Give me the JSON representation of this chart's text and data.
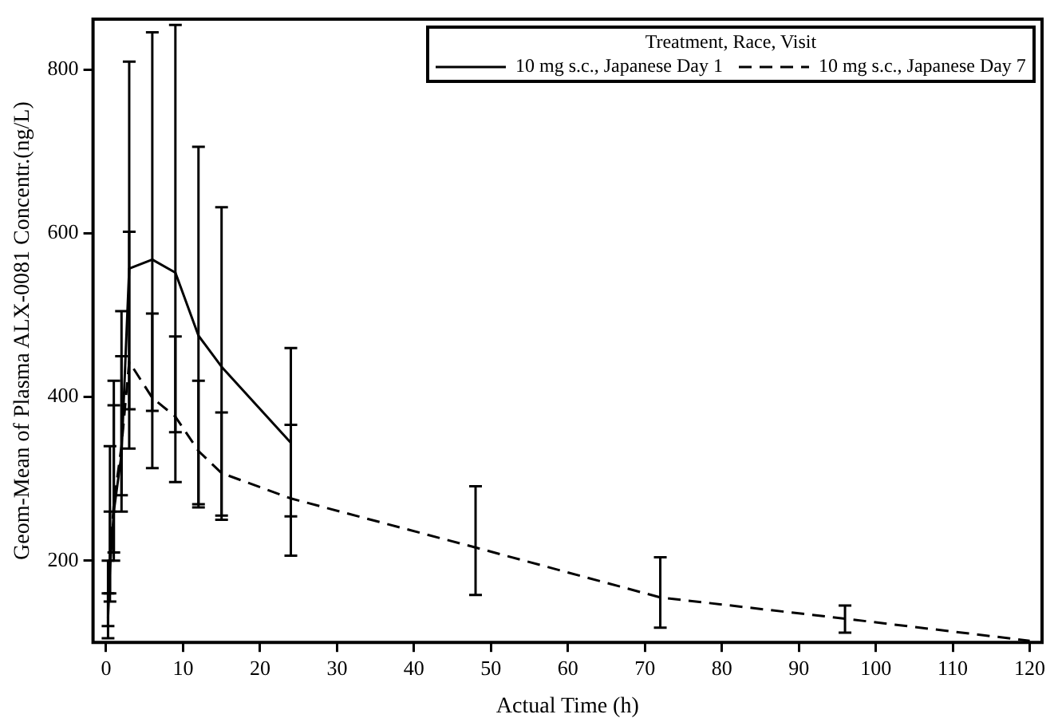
{
  "chart_data": {
    "type": "line",
    "xlabel": "Actual Time (h)",
    "ylabel": "Geom-Mean of Plasma ALX-0081 Concentr.(ng/L)",
    "legend_title": "Treatment, Race, Visit",
    "series": [
      {
        "name": "10 mg s.c., Japanese Day 1",
        "color": "#000000",
        "line_style": "solid",
        "x": [
          0.25,
          0.5,
          1,
          2,
          3,
          6,
          9,
          12,
          15,
          24
        ],
        "values": [
          130,
          190,
          260,
          330,
          557,
          568,
          552,
          475,
          437,
          344
        ],
        "errors": [
          [
            105,
            160
          ],
          [
            150,
            260
          ],
          [
            200,
            390
          ],
          [
            260,
            505
          ],
          [
            337,
            810
          ],
          [
            313,
            846
          ],
          [
            296,
            855
          ],
          [
            269,
            706
          ],
          [
            250,
            632
          ],
          [
            254,
            460
          ]
        ]
      },
      {
        "name": "10 mg s.c., Japanese Day 7",
        "color": "#000000",
        "line_style": "dashed",
        "x": [
          0.25,
          0.5,
          1,
          2,
          3,
          6,
          9,
          12,
          15,
          24,
          48,
          72,
          96,
          120
        ],
        "values": [
          150,
          200,
          270,
          340,
          443,
          399,
          376,
          334,
          307,
          276,
          216,
          155,
          129,
          102
        ],
        "errors": [
          [
            120,
            200
          ],
          [
            160,
            340
          ],
          [
            210,
            420
          ],
          [
            280,
            450
          ],
          [
            385,
            602
          ],
          [
            383,
            502
          ],
          [
            357,
            474
          ],
          [
            265,
            420
          ],
          [
            255,
            381
          ],
          [
            206,
            366
          ],
          [
            158,
            291
          ],
          [
            118,
            204
          ],
          [
            112,
            145
          ],
          null
        ]
      }
    ],
    "xlim": [
      -1.7,
      121.6
    ],
    "ylim": [
      100,
      862
    ],
    "xticks": [
      0,
      10,
      20,
      30,
      40,
      50,
      60,
      70,
      80,
      90,
      100,
      110,
      120
    ],
    "yticks": [
      200,
      400,
      600,
      800
    ],
    "grid": false,
    "legend": "top right",
    "marker": "none"
  }
}
